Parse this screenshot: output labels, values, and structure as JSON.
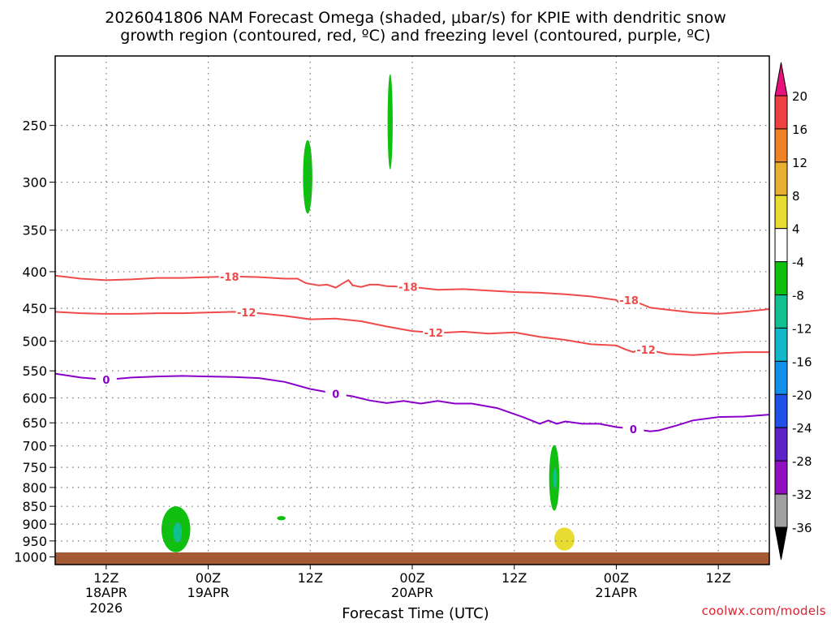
{
  "title_line1": "2026041806 NAM Forecast Omega (shaded, μbar/s) for KPIE with dendritic snow",
  "title_line2": "growth region (contoured, red, ºC) and freezing level (contoured, purple, ºC)",
  "credit": "coolwx.com/models",
  "chart_data": {
    "type": "heatmap",
    "xlabel": "Forecast Time (UTC)",
    "ylabel": "",
    "y_scale": "log-pressure",
    "ylim": [
      1025,
      200
    ],
    "xlim_hours": [
      0,
      84
    ],
    "y_ticks": [
      250,
      300,
      350,
      400,
      450,
      500,
      550,
      600,
      650,
      700,
      750,
      800,
      850,
      900,
      950,
      1000
    ],
    "grid": true,
    "x_ticks": [
      {
        "hour": 6,
        "label": "12Z",
        "sub1": "18APR",
        "sub2": "2026"
      },
      {
        "hour": 18,
        "label": "00Z",
        "sub1": "19APR",
        "sub2": ""
      },
      {
        "hour": 30,
        "label": "12Z",
        "sub1": "",
        "sub2": ""
      },
      {
        "hour": 42,
        "label": "00Z",
        "sub1": "20APR",
        "sub2": ""
      },
      {
        "hour": 54,
        "label": "12Z",
        "sub1": "",
        "sub2": ""
      },
      {
        "hour": 66,
        "label": "00Z",
        "sub1": "21APR",
        "sub2": ""
      },
      {
        "hour": 78,
        "label": "12Z",
        "sub1": "",
        "sub2": ""
      }
    ],
    "colorbar": {
      "levels": [
        20,
        16,
        12,
        8,
        4,
        -4,
        -8,
        -12,
        -16,
        -20,
        -24,
        -28,
        -32,
        -36
      ],
      "colors": [
        "#f03050",
        "#ee4040",
        "#f08228",
        "#e8b030",
        "#e8dc30",
        "#ffffff",
        "#10c010",
        "#10c090",
        "#10b8c8",
        "#1090e8",
        "#2050e8",
        "#6020c8",
        "#9010c0",
        "#a0a0a0",
        "#000000"
      ],
      "top_arrow_color": "#e8107a",
      "bottom_arrow_color": "#000000"
    },
    "shaded_regions": [
      {
        "name": "omega-core-lower-left",
        "t": 14.2,
        "p_top": 850,
        "p_bot": 985,
        "half_width_h": 1.7,
        "color": "#10c010"
      },
      {
        "name": "omega-inner-lower-left",
        "t": 14.4,
        "p_top": 895,
        "p_bot": 955,
        "half_width_h": 0.5,
        "color": "#10c090"
      },
      {
        "name": "omega-small-speck",
        "t": 26.6,
        "p_top": 877,
        "p_bot": 889,
        "half_width_h": 0.5,
        "color": "#10c010"
      },
      {
        "name": "omega-upper-300",
        "t": 29.7,
        "p_top": 262,
        "p_bot": 332,
        "half_width_h": 0.55,
        "color": "#10c010"
      },
      {
        "name": "omega-upper-250",
        "t": 39.4,
        "p_top": 212,
        "p_bot": 288,
        "half_width_h": 0.3,
        "color": "#10c010"
      },
      {
        "name": "omega-mid-770",
        "t": 58.7,
        "p_top": 698,
        "p_bot": 862,
        "half_width_h": 0.6,
        "color": "#10c010"
      },
      {
        "name": "omega-inner-770",
        "t": 58.8,
        "p_top": 752,
        "p_bot": 805,
        "half_width_h": 0.22,
        "color": "#10c090"
      },
      {
        "name": "omega-positive-950",
        "t": 59.9,
        "p_top": 910,
        "p_bot": 980,
        "half_width_h": 1.2,
        "color": "#e8dc30"
      }
    ],
    "contours": [
      {
        "name": "-18",
        "color": "#ee4a4a",
        "label_hours": [
          20.5,
          41.5,
          67.5
        ],
        "points": [
          [
            0,
            405
          ],
          [
            3,
            409
          ],
          [
            6,
            411
          ],
          [
            9,
            410
          ],
          [
            12,
            408
          ],
          [
            15,
            408
          ],
          [
            18,
            407
          ],
          [
            21,
            406
          ],
          [
            24,
            407
          ],
          [
            27,
            409
          ],
          [
            28.5,
            409
          ],
          [
            29.5,
            415
          ],
          [
            31,
            418
          ],
          [
            32,
            417
          ],
          [
            33,
            421
          ],
          [
            34,
            414
          ],
          [
            34.5,
            411
          ],
          [
            35,
            418
          ],
          [
            36,
            420
          ],
          [
            37,
            417
          ],
          [
            38,
            417
          ],
          [
            39,
            419
          ],
          [
            42,
            420
          ],
          [
            45,
            424
          ],
          [
            48,
            423
          ],
          [
            51,
            425
          ],
          [
            54,
            427
          ],
          [
            57,
            428
          ],
          [
            60,
            430
          ],
          [
            63,
            433
          ],
          [
            66,
            438
          ],
          [
            66.5,
            444
          ],
          [
            67,
            438
          ],
          [
            68,
            439
          ],
          [
            69,
            444
          ],
          [
            70,
            449
          ],
          [
            72,
            452
          ],
          [
            75,
            456
          ],
          [
            78,
            458
          ],
          [
            81,
            455
          ],
          [
            84,
            451
          ]
        ]
      },
      {
        "name": "-12",
        "color": "#ee4a4a",
        "label_hours": [
          22.5,
          44.5,
          69.5
        ],
        "points": [
          [
            0,
            455
          ],
          [
            3,
            457
          ],
          [
            6,
            458
          ],
          [
            9,
            458
          ],
          [
            12,
            457
          ],
          [
            15,
            457
          ],
          [
            18,
            456
          ],
          [
            21,
            455
          ],
          [
            24,
            457
          ],
          [
            27,
            461
          ],
          [
            30,
            466
          ],
          [
            33,
            465
          ],
          [
            36,
            469
          ],
          [
            39,
            477
          ],
          [
            42,
            484
          ],
          [
            45,
            487
          ],
          [
            48,
            485
          ],
          [
            51,
            488
          ],
          [
            54,
            486
          ],
          [
            57,
            493
          ],
          [
            60,
            498
          ],
          [
            63,
            505
          ],
          [
            66,
            507
          ],
          [
            67,
            513
          ],
          [
            68,
            518
          ],
          [
            69,
            512
          ],
          [
            72,
            521
          ],
          [
            75,
            523
          ],
          [
            78,
            520
          ],
          [
            81,
            518
          ],
          [
            84,
            518
          ]
        ]
      },
      {
        "name": "0",
        "color": "#8a00c8",
        "label_hours": [
          6,
          33,
          68
        ],
        "points": [
          [
            0,
            555
          ],
          [
            3,
            562
          ],
          [
            6,
            566
          ],
          [
            9,
            562
          ],
          [
            12,
            560
          ],
          [
            15,
            559
          ],
          [
            18,
            560
          ],
          [
            21,
            561
          ],
          [
            24,
            563
          ],
          [
            27,
            570
          ],
          [
            30,
            583
          ],
          [
            33,
            592
          ],
          [
            35,
            597
          ],
          [
            37,
            605
          ],
          [
            39,
            610
          ],
          [
            41,
            606
          ],
          [
            43,
            611
          ],
          [
            45,
            606
          ],
          [
            47,
            611
          ],
          [
            49,
            611
          ],
          [
            52,
            620
          ],
          [
            55,
            638
          ],
          [
            57,
            652
          ],
          [
            58,
            645
          ],
          [
            59,
            652
          ],
          [
            60,
            647
          ],
          [
            62,
            652
          ],
          [
            64,
            652
          ],
          [
            66,
            659
          ],
          [
            68,
            663
          ],
          [
            70,
            668
          ],
          [
            71,
            666
          ],
          [
            73,
            656
          ],
          [
            75,
            645
          ],
          [
            78,
            638
          ],
          [
            81,
            637
          ],
          [
            84,
            633
          ]
        ]
      }
    ]
  }
}
